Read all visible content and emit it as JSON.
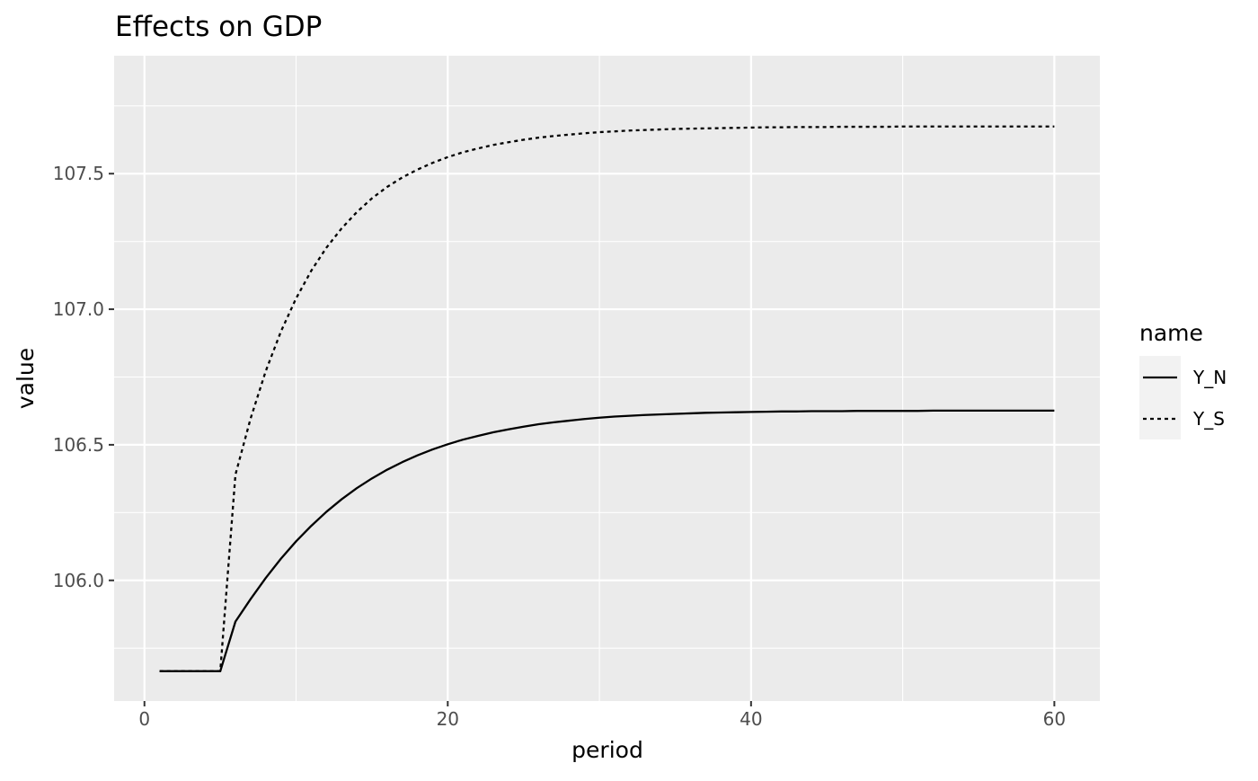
{
  "chart_data": {
    "type": "line",
    "title": "Effects on GDP",
    "xlabel": "period",
    "ylabel": "value",
    "xlim": [
      -2,
      63
    ],
    "ylim": [
      105.555,
      107.935
    ],
    "x_ticks": [
      0,
      20,
      40,
      60
    ],
    "x_tick_labels": [
      "0",
      "20",
      "40",
      "60"
    ],
    "y_ticks": [
      106.0,
      106.5,
      107.0,
      107.5
    ],
    "y_tick_labels": [
      "106.0",
      "106.5",
      "107.0",
      "107.5"
    ],
    "grid": true,
    "legend": {
      "title": "name",
      "placement": "right"
    },
    "series": [
      {
        "name": "Y_N",
        "line_style": "solid",
        "color": "#000000",
        "x": [
          1,
          2,
          3,
          4,
          5,
          6,
          7,
          8,
          9,
          10,
          11,
          12,
          13,
          14,
          15,
          16,
          17,
          18,
          19,
          20,
          21,
          22,
          23,
          24,
          25,
          26,
          27,
          28,
          29,
          30,
          31,
          32,
          33,
          34,
          35,
          36,
          37,
          38,
          39,
          40,
          41,
          42,
          43,
          44,
          45,
          46,
          47,
          48,
          49,
          50,
          51,
          52,
          53,
          54,
          55,
          56,
          57,
          58,
          59,
          60
        ],
        "values": [
          105.665,
          105.665,
          105.665,
          105.665,
          105.665,
          105.848,
          105.931,
          106.009,
          106.08,
          106.144,
          106.201,
          106.253,
          106.299,
          106.34,
          106.376,
          106.408,
          106.436,
          106.461,
          106.483,
          106.502,
          106.519,
          106.533,
          106.546,
          106.557,
          106.567,
          106.576,
          106.583,
          106.589,
          106.595,
          106.6,
          106.604,
          106.607,
          106.61,
          106.612,
          106.614,
          106.616,
          106.618,
          106.619,
          106.62,
          106.621,
          106.622,
          106.623,
          106.623,
          106.624,
          106.624,
          106.624,
          106.625,
          106.625,
          106.625,
          106.625,
          106.625,
          106.626,
          106.626,
          106.626,
          106.626,
          106.626,
          106.626,
          106.626,
          106.626,
          106.626
        ]
      },
      {
        "name": "Y_S",
        "line_style": "dashed",
        "color": "#000000",
        "x": [
          1,
          2,
          3,
          4,
          5,
          6,
          7,
          8,
          9,
          10,
          11,
          12,
          13,
          14,
          15,
          16,
          17,
          18,
          19,
          20,
          21,
          22,
          23,
          24,
          25,
          26,
          27,
          28,
          29,
          30,
          31,
          32,
          33,
          34,
          35,
          36,
          37,
          38,
          39,
          40,
          41,
          42,
          43,
          44,
          45,
          46,
          47,
          48,
          49,
          50,
          51,
          52,
          53,
          54,
          55,
          56,
          57,
          58,
          59,
          60
        ],
        "values": [
          105.665,
          105.665,
          105.665,
          105.665,
          105.665,
          106.39,
          106.597,
          106.772,
          106.918,
          107.04,
          107.142,
          107.227,
          107.298,
          107.358,
          107.409,
          107.451,
          107.486,
          107.515,
          107.54,
          107.561,
          107.579,
          107.593,
          107.606,
          107.616,
          107.625,
          107.633,
          107.639,
          107.644,
          107.649,
          107.653,
          107.656,
          107.659,
          107.661,
          107.663,
          107.665,
          107.666,
          107.667,
          107.668,
          107.669,
          107.67,
          107.671,
          107.671,
          107.672,
          107.672,
          107.672,
          107.673,
          107.673,
          107.673,
          107.673,
          107.674,
          107.674,
          107.674,
          107.674,
          107.674,
          107.674,
          107.674,
          107.674,
          107.674,
          107.674,
          107.674
        ]
      }
    ]
  }
}
